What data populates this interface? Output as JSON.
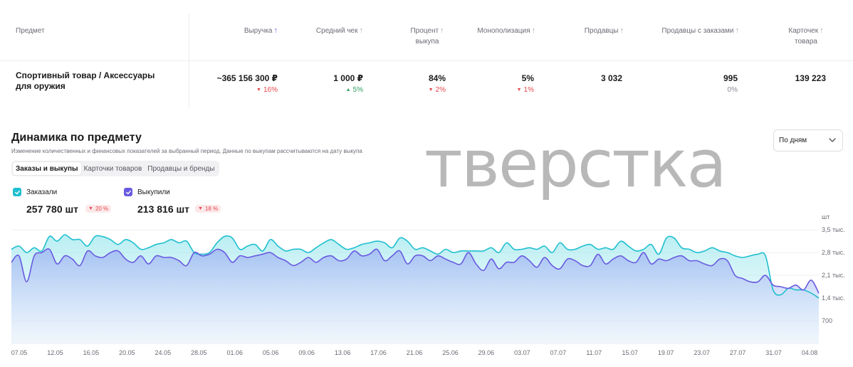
{
  "table": {
    "headers": [
      {
        "label": "Предмет",
        "sort": ""
      },
      {
        "label": "Выручка",
        "sort": "↑",
        "active": true
      },
      {
        "label": "Средний чек",
        "sort": "↑"
      },
      {
        "label": "Процент",
        "label2": "выкупа",
        "sort": "↑"
      },
      {
        "label": "Монополизация",
        "sort": "↑"
      },
      {
        "label": "Продавцы",
        "sort": "↑"
      },
      {
        "label": "Продавцы с заказами",
        "sort": "↑"
      },
      {
        "label": "Карточек",
        "label2": "товара",
        "sort": "↑"
      }
    ],
    "row": {
      "subject": "Спортивный товар / Аксессуары для оружия",
      "revenue": "~365 156 300 ₽",
      "revenue_change": "16%",
      "avg_check": "1 000 ₽",
      "avg_check_change": "5%",
      "buyout_percent": "84%",
      "buyout_change": "2%",
      "monopolization": "5%",
      "monopolization_change": "1%",
      "sellers": "3 032",
      "sellers_with_orders": "995",
      "sellers_with_orders_change": "0%",
      "cards": "139 223"
    }
  },
  "section": {
    "title": "Динамика по предмету",
    "description": "Изменение количественных и финансовых показателей за выбранный период. Данные по выкупам рассчитываются на дату выкупа",
    "tabs": [
      "Заказы и выкупы",
      "Карточки товаров",
      "Продавцы и бренды"
    ],
    "period_select": "По дням",
    "watermark": "тверстка"
  },
  "legend": [
    {
      "name": "Заказали",
      "total": "257 780 шт",
      "change": "20 %",
      "color": "#1fbfcf"
    },
    {
      "name": "Выкупили",
      "total": "213 816 шт",
      "change": "18 %",
      "color": "#6a5ae0"
    }
  ],
  "chart_data": {
    "type": "area",
    "unit_label": "шт",
    "ytick_labels": [
      "3,5 тыс.",
      "2,8 тыс.",
      "2,1 тыс.",
      "1,4 тыс.",
      "700",
      "0"
    ],
    "yticks": [
      3500,
      2800,
      2100,
      1400,
      700,
      0
    ],
    "ylim": [
      0,
      3700
    ],
    "xtick_labels": [
      "07.05",
      "12.05",
      "16.05",
      "20.05",
      "24.05",
      "28.05",
      "01.06",
      "05.06",
      "09.06",
      "13.06",
      "17.06",
      "21.06",
      "25.06",
      "29.06",
      "03.07",
      "07.07",
      "11.07",
      "15.07",
      "19.07",
      "23.07",
      "27.07",
      "31.07",
      "04.08"
    ],
    "series": [
      {
        "name": "Заказали",
        "color": "#1fbfcf",
        "values": [
          2900,
          3000,
          2800,
          2950,
          2850,
          3300,
          3150,
          3350,
          3200,
          3200,
          3000,
          3300,
          3290,
          3200,
          3050,
          3200,
          3100,
          2900,
          2950,
          3050,
          3100,
          3200,
          3100,
          3150,
          2800,
          2750,
          2800,
          3100,
          3300,
          3250,
          2900,
          3000,
          3050,
          2850,
          3200,
          3000,
          2850,
          2900,
          2900,
          2800,
          2950,
          3100,
          3200,
          3050,
          2900,
          2950,
          3050,
          3100,
          3150,
          3100,
          2950,
          3250,
          3150,
          2900,
          2950,
          2850,
          2750,
          2900,
          2800,
          2850,
          2850,
          2850,
          2850,
          2950,
          2800,
          3100,
          2900,
          2900,
          2950,
          2900,
          3000,
          2800,
          3100,
          2900,
          2900,
          3000,
          3050,
          2900,
          2950,
          2900,
          3150,
          3000,
          2850,
          2900,
          3050,
          2750,
          3250,
          3250,
          2950,
          2900,
          2800,
          2850,
          2950,
          2850,
          2800,
          2700,
          2650,
          2700,
          2750,
          2700,
          1650,
          1500,
          1700,
          1650,
          1650,
          1550,
          1400
        ]
      },
      {
        "name": "Выкупили",
        "color": "#6a5ae0",
        "values": [
          2500,
          2700,
          1900,
          2700,
          2800,
          2900,
          2450,
          2700,
          2600,
          2400,
          2850,
          2700,
          2650,
          2800,
          2850,
          2600,
          2500,
          2700,
          2450,
          2700,
          2650,
          2650,
          2550,
          2400,
          2800,
          2700,
          2750,
          2900,
          2800,
          2500,
          2700,
          2650,
          2700,
          2750,
          2800,
          2650,
          2550,
          2400,
          2500,
          2650,
          2500,
          2650,
          2700,
          2550,
          2600,
          2850,
          2700,
          2750,
          2900,
          2550,
          2700,
          2850,
          2450,
          2700,
          2700,
          2550,
          2700,
          2600,
          2500,
          2450,
          2800,
          2450,
          2250,
          2600,
          2300,
          2500,
          2500,
          2700,
          2550,
          2350,
          2650,
          2400,
          2300,
          2600,
          2550,
          2400,
          2400,
          2750,
          2450,
          2600,
          2700,
          2550,
          2500,
          2800,
          2450,
          2600,
          2550,
          2650,
          2700,
          2550,
          2550,
          2450,
          2400,
          2600,
          2550,
          2100,
          2000,
          1900,
          1900,
          2100,
          1800,
          1750,
          1700,
          1800,
          1650,
          1950,
          1550
        ]
      }
    ]
  }
}
